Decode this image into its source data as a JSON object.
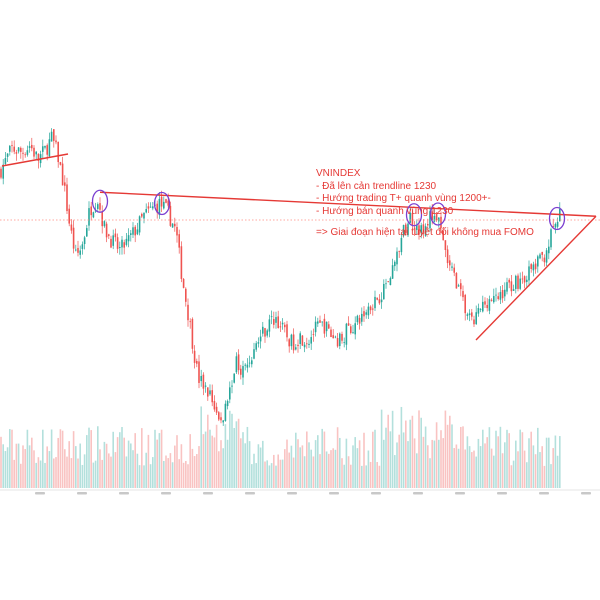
{
  "chart_data": {
    "type": "candlestick",
    "title": "",
    "xlabel": "",
    "ylabel": "",
    "ylim": [
      880,
      1360
    ],
    "up_color": "#26a69a",
    "down_color": "#ef5350",
    "trendline_color": "#e53935",
    "marker_color": "#7b3fd1",
    "reference_level_color": "#ff8a80",
    "reference_level": 1200,
    "close_path": [
      [
        0,
        1265
      ],
      [
        12,
        1295
      ],
      [
        22,
        1290
      ],
      [
        30,
        1300
      ],
      [
        38,
        1280
      ],
      [
        46,
        1295
      ],
      [
        52,
        1310
      ],
      [
        58,
        1285
      ],
      [
        64,
        1245
      ],
      [
        70,
        1190
      ],
      [
        76,
        1150
      ],
      [
        82,
        1165
      ],
      [
        90,
        1215
      ],
      [
        98,
        1228
      ],
      [
        104,
        1190
      ],
      [
        112,
        1172
      ],
      [
        120,
        1160
      ],
      [
        128,
        1172
      ],
      [
        136,
        1188
      ],
      [
        144,
        1205
      ],
      [
        152,
        1215
      ],
      [
        160,
        1222
      ],
      [
        168,
        1210
      ],
      [
        176,
        1185
      ],
      [
        182,
        1125
      ],
      [
        190,
        1060
      ],
      [
        198,
        990
      ],
      [
        206,
        975
      ],
      [
        214,
        955
      ],
      [
        220,
        925
      ],
      [
        228,
        965
      ],
      [
        236,
        1010
      ],
      [
        244,
        1000
      ],
      [
        252,
        1020
      ],
      [
        260,
        1045
      ],
      [
        268,
        1060
      ],
      [
        276,
        1070
      ],
      [
        284,
        1050
      ],
      [
        292,
        1035
      ],
      [
        300,
        1045
      ],
      [
        308,
        1040
      ],
      [
        316,
        1055
      ],
      [
        324,
        1060
      ],
      [
        332,
        1045
      ],
      [
        340,
        1040
      ],
      [
        348,
        1055
      ],
      [
        356,
        1060
      ],
      [
        364,
        1075
      ],
      [
        372,
        1090
      ],
      [
        380,
        1100
      ],
      [
        388,
        1120
      ],
      [
        396,
        1150
      ],
      [
        404,
        1185
      ],
      [
        410,
        1205
      ],
      [
        416,
        1195
      ],
      [
        424,
        1180
      ],
      [
        430,
        1205
      ],
      [
        436,
        1208
      ],
      [
        442,
        1175
      ],
      [
        448,
        1140
      ],
      [
        456,
        1120
      ],
      [
        464,
        1085
      ],
      [
        472,
        1060
      ],
      [
        480,
        1080
      ],
      [
        488,
        1095
      ],
      [
        496,
        1092
      ],
      [
        504,
        1108
      ],
      [
        512,
        1115
      ],
      [
        520,
        1120
      ],
      [
        528,
        1128
      ],
      [
        536,
        1140
      ],
      [
        544,
        1152
      ],
      [
        550,
        1175
      ],
      [
        556,
        1195
      ],
      [
        560,
        1206
      ]
    ],
    "trendlines": [
      {
        "points": [
          [
            2,
            1272
          ],
          [
            68,
            1288
          ]
        ]
      },
      {
        "points": [
          [
            100,
            1237
          ],
          [
            596,
            1205
          ]
        ]
      },
      {
        "points": [
          [
            476,
            1040
          ],
          [
            596,
            1205
          ]
        ]
      }
    ],
    "circle_markers": [
      [
        100,
        1225
      ],
      [
        162,
        1222
      ],
      [
        414,
        1207
      ],
      [
        438,
        1208
      ],
      [
        557,
        1202
      ]
    ],
    "x_ticks": [
      "",
      "",
      "",
      "",
      "",
      "",
      "",
      "",
      "",
      "",
      "",
      "",
      "",
      ""
    ]
  },
  "annotation": {
    "title": "VNINDEX",
    "items": [
      "- Đã lên cản trendline 1230",
      "- Hướng trading T+ quanh vùng 1200+-",
      "- Hướng bán quanh vùng 1230"
    ],
    "conclusion": "=> Giai đoạn hiện tại tuyệt đối không mua FOMO"
  }
}
